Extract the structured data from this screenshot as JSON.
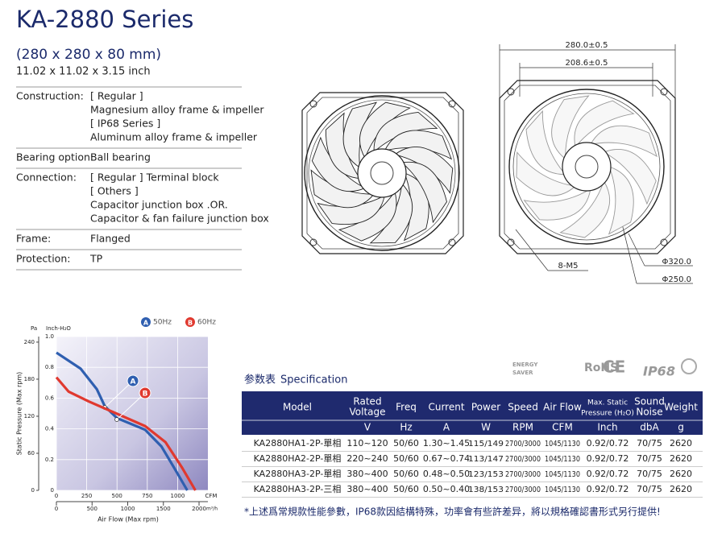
{
  "header": {
    "title": "KA-2880 Series",
    "size_mm": "(280 x 280 x 80 mm)",
    "size_inch": "11.02 x 11.02 x 3.15 inch"
  },
  "specs": [
    {
      "label": "Construction:",
      "lines": [
        "[ Regular ]",
        "Magnesium alloy frame & impeller",
        "[ IP68 Series ]",
        "Aluminum alloy frame & impeller"
      ]
    },
    {
      "label": "Bearing option:",
      "lines": [
        "Ball bearing"
      ]
    },
    {
      "label": "Connection:",
      "lines": [
        "[ Regular ]  Terminal block",
        "[ Others ]",
        "Capacitor junction box    .OR.",
        "Capacitor & fan failure junction box"
      ]
    },
    {
      "label": "Frame:",
      "lines": [
        "Flanged"
      ]
    },
    {
      "label": "Protection:",
      "lines": [
        "TP"
      ]
    }
  ],
  "drawing": {
    "width": "280.0±0.5",
    "hole_pitch": "208.6±0.5",
    "screws": "8-M5",
    "outer_diameter": "Φ320.0",
    "inner_diameter": "Φ250.0"
  },
  "certifications": [
    "ENERGY",
    "SAVER",
    "RoHS",
    "CE",
    "IP68"
  ],
  "chart_data": {
    "type": "line",
    "y_unit": "Pa",
    "y2_unit": "Inch-H₂O",
    "x_unit": "CFM",
    "x2_unit": "m³/h",
    "ylabel": "Static Pressure (Max rpm)",
    "xlabel": "Air Flow (Max rpm)",
    "xlim": [
      0,
      1250
    ],
    "xticks": [
      0,
      250,
      500,
      750,
      1000
    ],
    "x2lim": [
      0,
      2124
    ],
    "x2ticks": [
      0,
      500,
      1000,
      1500,
      2000
    ],
    "ylim": [
      0,
      249
    ],
    "yticks": [
      0,
      60,
      120,
      180,
      240
    ],
    "y2lim": [
      0,
      1
    ],
    "y2ticks": [
      0,
      0.2,
      0.4,
      0.6,
      0.8,
      {
        "value": 1,
        "label": "1.0"
      }
    ],
    "grid": true,
    "series": [
      {
        "name": "50Hz",
        "marker": "A",
        "color": "#2f5fb0",
        "x": [
          0,
          200,
          333,
          400,
          500,
          733,
          867,
          967,
          1080
        ],
        "values": [
          223,
          197,
          164,
          136,
          117,
          98,
          71,
          38,
          0
        ]
      },
      {
        "name": "60Hz",
        "marker": "B",
        "color": "#e0392f",
        "x": [
          0,
          100,
          267,
          500,
          733,
          900,
          1033,
          1147
        ],
        "values": [
          183,
          160,
          144,
          124,
          104,
          78,
          38,
          0
        ]
      }
    ]
  },
  "table": {
    "title": "参数表",
    "title_en": "Specification",
    "header": [
      [
        "Model"
      ],
      [
        "Rated",
        "Voltage"
      ],
      [
        "Freq"
      ],
      [
        "Current"
      ],
      [
        "Power"
      ],
      [
        "Speed"
      ],
      [
        "Air Flow"
      ],
      [
        "Max. Static",
        "Pressure (H₂O)"
      ],
      [
        "Sound",
        "Noise"
      ],
      [
        "Weight"
      ]
    ],
    "units": [
      null,
      "V",
      "Hz",
      "A",
      "W",
      "RPM",
      "CFM",
      "Inch",
      "dbA",
      "g"
    ],
    "rows": [
      [
        "KA2880HA1-2P-單相",
        "110~120",
        "50/60",
        "1.30~1.45",
        "115/149",
        "2700/3000",
        "1045/1130",
        "0.92/0.72",
        "70/75",
        "2620"
      ],
      [
        "KA2880HA2-2P-單相",
        "220~240",
        "50/60",
        "0.67~0.74",
        "113/147",
        "2700/3000",
        "1045/1130",
        "0.92/0.72",
        "70/75",
        "2620"
      ],
      [
        "KA2880HA3-2P-單相",
        "380~400",
        "50/60",
        "0.48~0.50",
        "123/153",
        "2700/3000",
        "1045/1130",
        "0.92/0.72",
        "70/75",
        "2620"
      ],
      [
        "KA2880HA3-2P-三相",
        "380~400",
        "50/60",
        "0.50~0.40",
        "138/153",
        "2700/3000",
        "1045/1130",
        "0.92/0.72",
        "70/75",
        "2620"
      ]
    ]
  },
  "note": "*上述爲常規款性能參數，IP68款因結構特殊，功率會有些許差异，將以規格確認書形式另行提供!"
}
